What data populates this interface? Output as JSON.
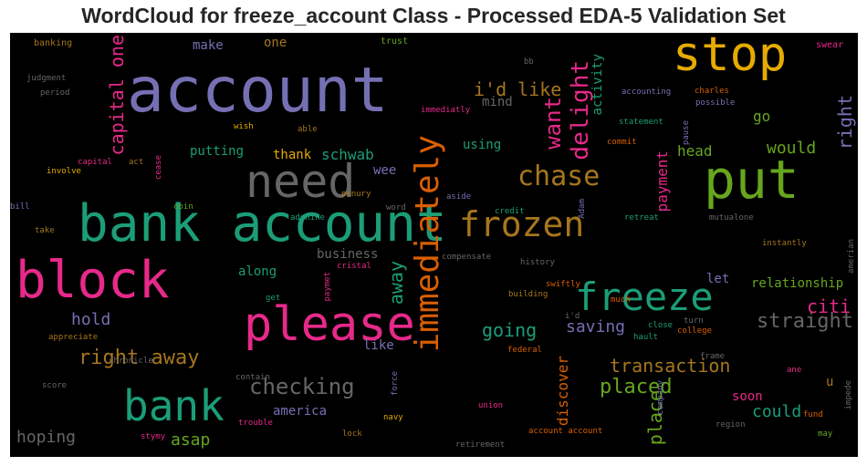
{
  "chart_data": {
    "type": "wordcloud",
    "title": "WordCloud for freeze_account Class - Processed EDA-5 Validation Set",
    "background": "#000000",
    "palette": [
      "#7570b3",
      "#e6ab02",
      "#66a61e",
      "#1b9e77",
      "#e7298a",
      "#a6761d",
      "#666666",
      "#d95f02"
    ],
    "words": [
      {
        "text": "account",
        "color": "#7570b3",
        "weight": 1.0
      },
      {
        "text": "stop",
        "color": "#e6ab02",
        "weight": 0.72
      },
      {
        "text": "put",
        "color": "#66a61e",
        "weight": 0.75
      },
      {
        "text": "need",
        "color": "#666666",
        "weight": 0.62
      },
      {
        "text": "bank account",
        "color": "#1b9e77",
        "weight": 0.85
      },
      {
        "text": "block",
        "color": "#e7298a",
        "weight": 0.85
      },
      {
        "text": "please",
        "color": "#e7298a",
        "weight": 0.8
      },
      {
        "text": "frozen",
        "color": "#a6761d",
        "weight": 0.55
      },
      {
        "text": "freeze",
        "color": "#1b9e77",
        "weight": 0.65
      },
      {
        "text": "bank",
        "color": "#1b9e77",
        "weight": 0.72
      },
      {
        "text": "immediately",
        "color": "#d95f02",
        "weight": 0.55
      },
      {
        "text": "chase",
        "color": "#a6761d",
        "weight": 0.45
      },
      {
        "text": "delight",
        "color": "#e7298a",
        "weight": 0.4
      },
      {
        "text": "want",
        "color": "#e7298a",
        "weight": 0.36
      },
      {
        "text": "capital one",
        "color": "#e7298a",
        "weight": 0.32
      },
      {
        "text": "i'd like",
        "color": "#a6761d",
        "weight": 0.3
      },
      {
        "text": "right",
        "color": "#7570b3",
        "weight": 0.32
      },
      {
        "text": "right away",
        "color": "#a6761d",
        "weight": 0.32
      },
      {
        "text": "checking",
        "color": "#666666",
        "weight": 0.34
      },
      {
        "text": "straight",
        "color": "#666666",
        "weight": 0.3
      },
      {
        "text": "transaction",
        "color": "#a6761d",
        "weight": 0.28
      },
      {
        "text": "placed",
        "color": "#66a61e",
        "weight": 0.3
      },
      {
        "text": "citi",
        "color": "#e7298a",
        "weight": 0.28
      },
      {
        "text": "going",
        "color": "#1b9e77",
        "weight": 0.28
      },
      {
        "text": "saving",
        "color": "#7570b3",
        "weight": 0.25
      },
      {
        "text": "away",
        "color": "#1b9e77",
        "weight": 0.28
      },
      {
        "text": "hold",
        "color": "#7570b3",
        "weight": 0.25
      },
      {
        "text": "payment",
        "color": "#e7298a",
        "weight": 0.22
      },
      {
        "text": "would",
        "color": "#66a61e",
        "weight": 0.24
      },
      {
        "text": "could",
        "color": "#1b9e77",
        "weight": 0.24
      },
      {
        "text": "place",
        "color": "#66a61e",
        "weight": 0.26
      },
      {
        "text": "discover",
        "color": "#d95f02",
        "weight": 0.22
      },
      {
        "text": "asap",
        "color": "#66a61e",
        "weight": 0.24
      },
      {
        "text": "hoping",
        "color": "#666666",
        "weight": 0.24
      },
      {
        "text": "america",
        "color": "#7570b3",
        "weight": 0.2
      },
      {
        "text": "relationship",
        "color": "#66a61e",
        "weight": 0.2
      },
      {
        "text": "go",
        "color": "#66a61e",
        "weight": 0.2
      },
      {
        "text": "activity",
        "color": "#1b9e77",
        "weight": 0.18
      },
      {
        "text": "head",
        "color": "#66a61e",
        "weight": 0.2
      },
      {
        "text": "schwab",
        "color": "#1b9e77",
        "weight": 0.2
      },
      {
        "text": "putting",
        "color": "#1b9e77",
        "weight": 0.2
      },
      {
        "text": "thank",
        "color": "#e6ab02",
        "weight": 0.18
      },
      {
        "text": "along",
        "color": "#1b9e77",
        "weight": 0.18
      },
      {
        "text": "using",
        "color": "#1b9e77",
        "weight": 0.18
      },
      {
        "text": "mind",
        "color": "#666666",
        "weight": 0.16
      },
      {
        "text": "make",
        "color": "#7570b3",
        "weight": 0.16
      },
      {
        "text": "one",
        "color": "#a6761d",
        "weight": 0.16
      },
      {
        "text": "wee",
        "color": "#7570b3",
        "weight": 0.16
      },
      {
        "text": "business",
        "color": "#666666",
        "weight": 0.16
      },
      {
        "text": "let",
        "color": "#7570b3",
        "weight": 0.16
      },
      {
        "text": "soon",
        "color": "#e7298a",
        "weight": 0.16
      },
      {
        "text": "like",
        "color": "#7570b3",
        "weight": 0.16
      },
      {
        "text": "u",
        "color": "#a6761d",
        "weight": 0.16
      },
      {
        "text": "banking",
        "color": "#a6761d",
        "weight": 0.08
      },
      {
        "text": "trust",
        "color": "#66a61e",
        "weight": 0.08
      },
      {
        "text": "swear",
        "color": "#e7298a",
        "weight": 0.08
      },
      {
        "text": "judgment",
        "color": "#666666",
        "weight": 0.08
      },
      {
        "text": "period",
        "color": "#666666",
        "weight": 0.08
      },
      {
        "text": "bb",
        "color": "#666666",
        "weight": 0.08
      },
      {
        "text": "immediatly",
        "color": "#e7298a",
        "weight": 0.08
      },
      {
        "text": "accounting",
        "color": "#7570b3",
        "weight": 0.08
      },
      {
        "text": "charles",
        "color": "#d95f02",
        "weight": 0.08
      },
      {
        "text": "possible",
        "color": "#7570b3",
        "weight": 0.08
      },
      {
        "text": "wish",
        "color": "#e6ab02",
        "weight": 0.08
      },
      {
        "text": "able",
        "color": "#a6761d",
        "weight": 0.08
      },
      {
        "text": "statement",
        "color": "#1b9e77",
        "weight": 0.08
      },
      {
        "text": "commit",
        "color": "#d95f02",
        "weight": 0.08
      },
      {
        "text": "pause",
        "color": "#7570b3",
        "weight": 0.08
      },
      {
        "text": "capital",
        "color": "#e7298a",
        "weight": 0.08
      },
      {
        "text": "act",
        "color": "#a6761d",
        "weight": 0.08
      },
      {
        "text": "cease",
        "color": "#e7298a",
        "weight": 0.08
      },
      {
        "text": "involve",
        "color": "#e6ab02",
        "weight": 0.08
      },
      {
        "text": "penury",
        "color": "#a6761d",
        "weight": 0.08
      },
      {
        "text": "word",
        "color": "#666666",
        "weight": 0.08
      },
      {
        "text": "bill",
        "color": "#7570b3",
        "weight": 0.08
      },
      {
        "text": "coin",
        "color": "#66a61e",
        "weight": 0.08
      },
      {
        "text": "adenine",
        "color": "#1b9e77",
        "weight": 0.08
      },
      {
        "text": "aside",
        "color": "#7570b3",
        "weight": 0.08
      },
      {
        "text": "credit",
        "color": "#1b9e77",
        "weight": 0.08
      },
      {
        "text": "Adam",
        "color": "#7570b3",
        "weight": 0.08
      },
      {
        "text": "retreat",
        "color": "#1b9e77",
        "weight": 0.08
      },
      {
        "text": "mutualone",
        "color": "#666666",
        "weight": 0.08
      },
      {
        "text": "take",
        "color": "#a6761d",
        "weight": 0.08
      },
      {
        "text": "cristal",
        "color": "#e7298a",
        "weight": 0.08
      },
      {
        "text": "compensate",
        "color": "#666666",
        "weight": 0.08
      },
      {
        "text": "history",
        "color": "#666666",
        "weight": 0.08
      },
      {
        "text": "instantly",
        "color": "#a6761d",
        "weight": 0.08
      },
      {
        "text": "amerian",
        "color": "#666666",
        "weight": 0.08
      },
      {
        "text": "paymet",
        "color": "#e7298a",
        "weight": 0.08
      },
      {
        "text": "swiftly",
        "color": "#d95f02",
        "weight": 0.08
      },
      {
        "text": "get",
        "color": "#1b9e77",
        "weight": 0.08
      },
      {
        "text": "much",
        "color": "#d95f02",
        "weight": 0.08
      },
      {
        "text": "building",
        "color": "#a6761d",
        "weight": 0.08
      },
      {
        "text": "i'd",
        "color": "#666666",
        "weight": 0.08
      },
      {
        "text": "close",
        "color": "#1b9e77",
        "weight": 0.08
      },
      {
        "text": "turn",
        "color": "#666666",
        "weight": 0.08
      },
      {
        "text": "appreciate",
        "color": "#a6761d",
        "weight": 0.08
      },
      {
        "text": "federal",
        "color": "#d95f02",
        "weight": 0.08
      },
      {
        "text": "hault",
        "color": "#1b9e77",
        "weight": 0.08
      },
      {
        "text": "college",
        "color": "#d95f02",
        "weight": 0.08
      },
      {
        "text": "chronicle",
        "color": "#666666",
        "weight": 0.08
      },
      {
        "text": "frame",
        "color": "#666666",
        "weight": 0.08
      },
      {
        "text": "ane",
        "color": "#e7298a",
        "weight": 0.08
      },
      {
        "text": "score",
        "color": "#666666",
        "weight": 0.08
      },
      {
        "text": "contain",
        "color": "#666666",
        "weight": 0.08
      },
      {
        "text": "force",
        "color": "#7570b3",
        "weight": 0.08
      },
      {
        "text": "trouble",
        "color": "#e7298a",
        "weight": 0.08
      },
      {
        "text": "union",
        "color": "#e7298a",
        "weight": 0.08
      },
      {
        "text": "company",
        "color": "#7570b3",
        "weight": 0.08
      },
      {
        "text": "impede",
        "color": "#666666",
        "weight": 0.08
      },
      {
        "text": "fund",
        "color": "#d95f02",
        "weight": 0.08
      },
      {
        "text": "navy",
        "color": "#e6ab02",
        "weight": 0.08
      },
      {
        "text": "account account",
        "color": "#d95f02",
        "weight": 0.08
      },
      {
        "text": "region",
        "color": "#666666",
        "weight": 0.08
      },
      {
        "text": "may",
        "color": "#66a61e",
        "weight": 0.08
      },
      {
        "text": "stymy",
        "color": "#e7298a",
        "weight": 0.08
      },
      {
        "text": "lock",
        "color": "#a6761d",
        "weight": 0.08
      },
      {
        "text": "retirement",
        "color": "#666666",
        "weight": 0.08
      }
    ]
  }
}
